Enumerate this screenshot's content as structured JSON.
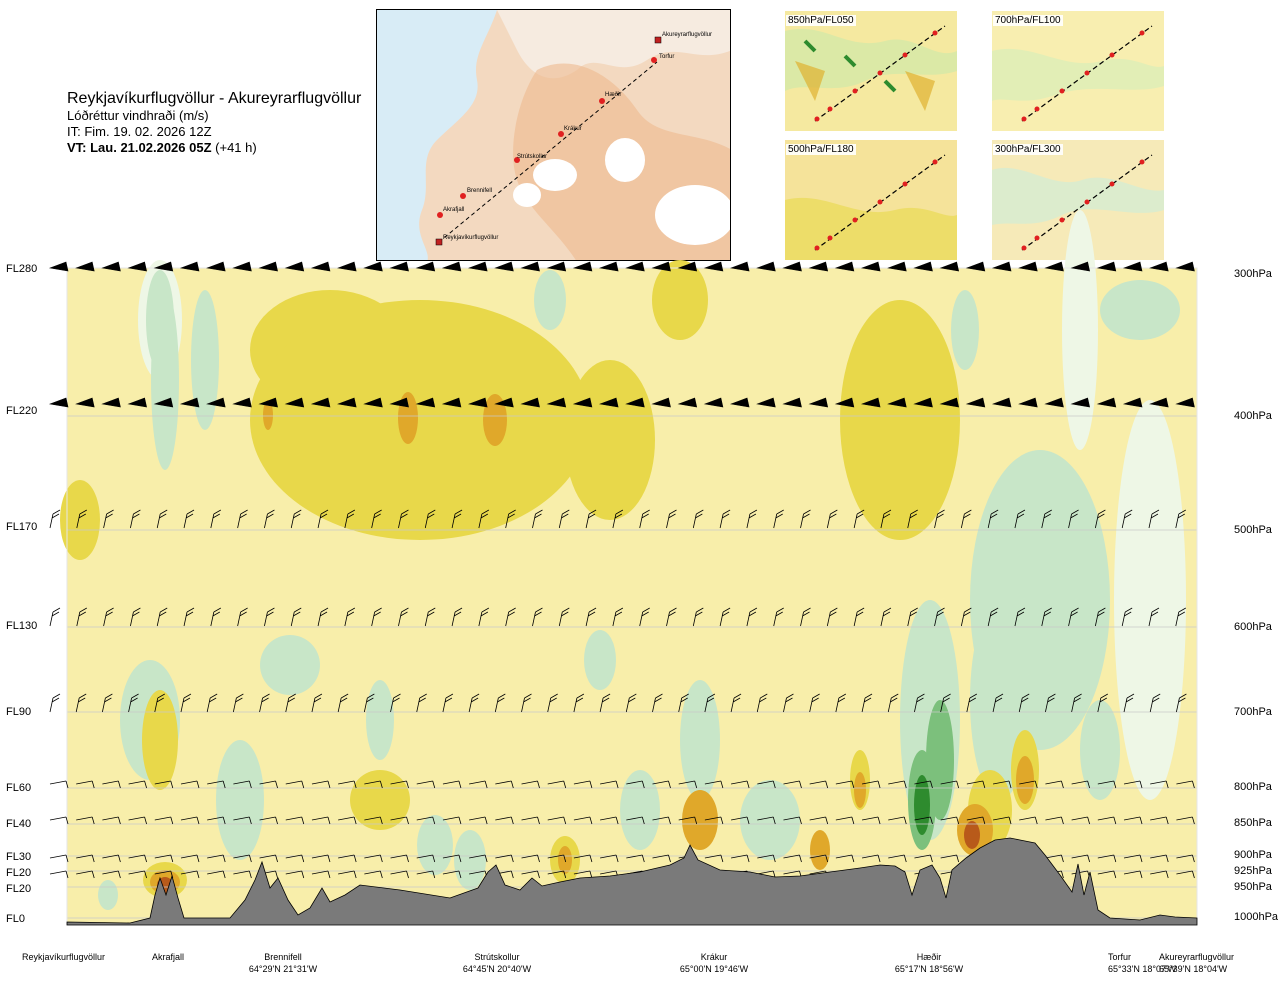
{
  "title": {
    "route": "Reykjavíkurflugvöllur - Akureyrarflugvöllur",
    "variable": "Lóðréttur vindhraði (m/s)",
    "issue_time": "IT: Fim. 19. 02. 2026 12Z",
    "valid_label": "VT: Lau. 21.02.2026 05Z",
    "valid_offset": "(+41 h)"
  },
  "route_map": {
    "waypoints": [
      "Reykjavíkurflugvöllur",
      "Akrafjall",
      "Brennifell",
      "Strútskollur",
      "Krákur",
      "Hæðir",
      "Torfur",
      "Akureyrarflugvöllur"
    ]
  },
  "level_maps": [
    {
      "label": "850hPa/FL050"
    },
    {
      "label": "700hPa/FL100"
    },
    {
      "label": "500hPa/FL180"
    },
    {
      "label": "300hPa/FL300"
    }
  ],
  "chart_data": {
    "type": "heatmap",
    "variable": "Lóðréttur vindhraði (m/s)",
    "y_levels": [
      {
        "fl": "FL0",
        "hpa": "1000hPa"
      },
      {
        "fl": "FL20",
        "hpa": "950hPa"
      },
      {
        "fl": "FL20",
        "hpa": "925hPa"
      },
      {
        "fl": "FL30",
        "hpa": "900hPa"
      },
      {
        "fl": "FL40",
        "hpa": "850hPa"
      },
      {
        "fl": "FL60",
        "hpa": "800hPa"
      },
      {
        "fl": "FL90",
        "hpa": "700hPa"
      },
      {
        "fl": "FL130",
        "hpa": "600hPa"
      },
      {
        "fl": "FL170",
        "hpa": "500hPa"
      },
      {
        "fl": "FL220",
        "hpa": "400hPa"
      },
      {
        "fl": "FL280",
        "hpa": "300hPa"
      }
    ],
    "x_locations": [
      {
        "name": "Reykjavíkurflugvöllur",
        "coord": ""
      },
      {
        "name": "Akrafjall",
        "coord": ""
      },
      {
        "name": "Brennifell",
        "coord": "64°29'N 21°31'W"
      },
      {
        "name": "Strútskollur",
        "coord": "64°45'N 20°40'W"
      },
      {
        "name": "Krákur",
        "coord": "65°00'N 19°46'W"
      },
      {
        "name": "Hæðir",
        "coord": "65°17'N 18°56'W"
      },
      {
        "name": "Torfur",
        "coord": "65°33'N 18°07'W"
      },
      {
        "name": "Akureyrarflugvöllur",
        "coord": "65°39'N 18°04'W"
      }
    ],
    "colors": {
      "strong_up": "#2e8b2e",
      "up": "#7cc07c",
      "weak_up": "#c8e6c8",
      "near_zero_up": "#eef7e6",
      "near_zero": "#f8eeaa",
      "weak_down": "#e8d84a",
      "down": "#e0a82a",
      "strong_down": "#b85a1a",
      "terrain": "#7a7a7a"
    },
    "wind_barbs": "shown at each level along the cross-section"
  }
}
